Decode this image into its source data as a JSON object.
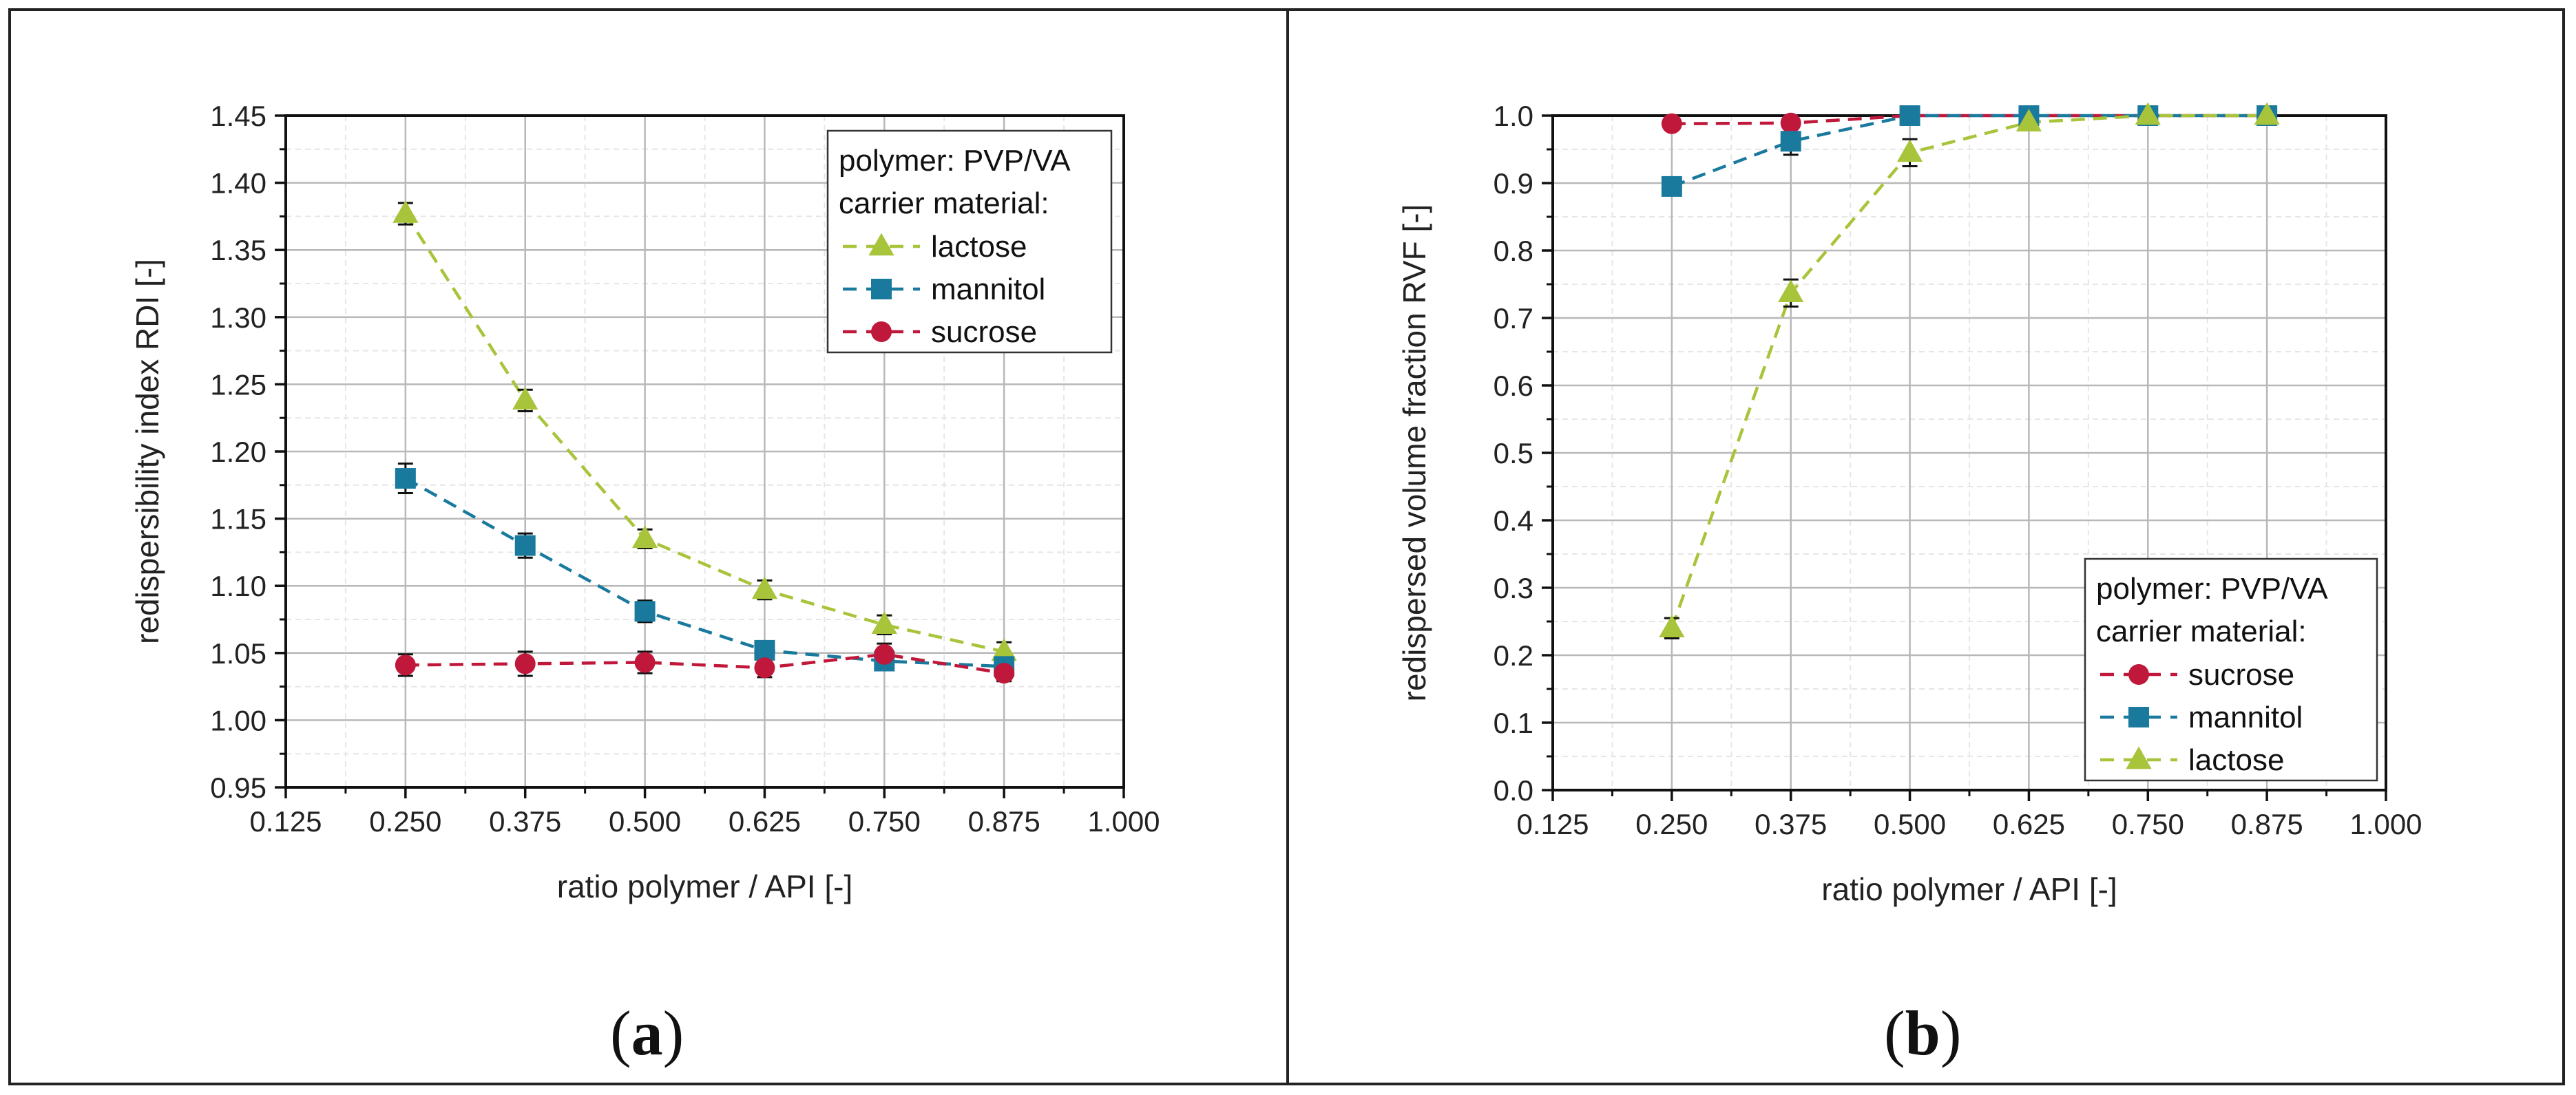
{
  "panel_labels": {
    "a": "a",
    "b": "b"
  },
  "chart_data": [
    {
      "type": "line",
      "panel": "a",
      "xlabel": "ratio polymer / API [-]",
      "ylabel": "redispersibility index RDI [-]",
      "xlim": [
        0.125,
        1.0
      ],
      "ylim": [
        0.95,
        1.45
      ],
      "x_ticks": [
        "0.125",
        "0.250",
        "0.375",
        "0.500",
        "0.625",
        "0.750",
        "0.875",
        "1.000"
      ],
      "y_ticks": [
        "0.95",
        "1.00",
        "1.05",
        "1.10",
        "1.15",
        "1.20",
        "1.25",
        "1.30",
        "1.35",
        "1.40",
        "1.45"
      ],
      "grid": true,
      "legend": {
        "position": "top-right",
        "title_lines": [
          "polymer: PVP/VA",
          "carrier material:"
        ],
        "order": [
          "lactose",
          "mannitol",
          "sucrose"
        ]
      },
      "x": [
        0.25,
        0.375,
        0.5,
        0.625,
        0.75,
        0.875
      ],
      "series": [
        {
          "name": "lactose",
          "marker": "triangle",
          "color": "#a8c43a",
          "values": [
            1.377,
            1.238,
            1.135,
            1.097,
            1.071,
            1.051
          ],
          "errors": [
            0.008,
            0.008,
            0.007,
            0.007,
            0.007,
            0.007
          ]
        },
        {
          "name": "mannitol",
          "marker": "square",
          "color": "#1a7a9e",
          "values": [
            1.18,
            1.13,
            1.081,
            1.052,
            1.044,
            1.04
          ],
          "errors": [
            0.011,
            0.009,
            0.008,
            0.006,
            0.005,
            0.005
          ]
        },
        {
          "name": "sucrose",
          "marker": "circle",
          "color": "#c0183a",
          "values": [
            1.041,
            1.042,
            1.043,
            1.039,
            1.049,
            1.035
          ],
          "errors": [
            0.008,
            0.009,
            0.008,
            0.007,
            0.008,
            0.006
          ]
        }
      ]
    },
    {
      "type": "line",
      "panel": "b",
      "xlabel": "ratio polymer / API [-]",
      "ylabel": "redispersed volume fraction RVF [-]",
      "xlim": [
        0.125,
        1.0
      ],
      "ylim": [
        0.0,
        1.0
      ],
      "x_ticks": [
        "0.125",
        "0.250",
        "0.375",
        "0.500",
        "0.625",
        "0.750",
        "0.875",
        "1.000"
      ],
      "y_ticks": [
        "0.0",
        "0.1",
        "0.2",
        "0.3",
        "0.4",
        "0.5",
        "0.6",
        "0.7",
        "0.8",
        "0.9",
        "1.0"
      ],
      "grid": true,
      "legend": {
        "position": "bottom-right",
        "title_lines": [
          "polymer: PVP/VA",
          "carrier material:"
        ],
        "order": [
          "sucrose",
          "mannitol",
          "lactose"
        ]
      },
      "x": [
        0.25,
        0.375,
        0.5,
        0.625,
        0.75,
        0.875
      ],
      "series": [
        {
          "name": "sucrose",
          "marker": "circle",
          "color": "#c0183a",
          "values": [
            0.988,
            0.989,
            1.0,
            1.0,
            1.0,
            1.0
          ],
          "errors": [
            0,
            0,
            0,
            0,
            0,
            0
          ]
        },
        {
          "name": "mannitol",
          "marker": "square",
          "color": "#1a7a9e",
          "values": [
            0.895,
            0.962,
            1.0,
            1.0,
            1.0,
            1.0
          ],
          "errors": [
            0.008,
            0.02,
            0.005,
            0,
            0,
            0
          ]
        },
        {
          "name": "lactose",
          "marker": "triangle",
          "color": "#a8c43a",
          "values": [
            0.24,
            0.737,
            0.945,
            0.99,
            1.0,
            1.0
          ],
          "errors": [
            0.015,
            0.02,
            0.02,
            0.008,
            0,
            0
          ]
        }
      ]
    }
  ]
}
